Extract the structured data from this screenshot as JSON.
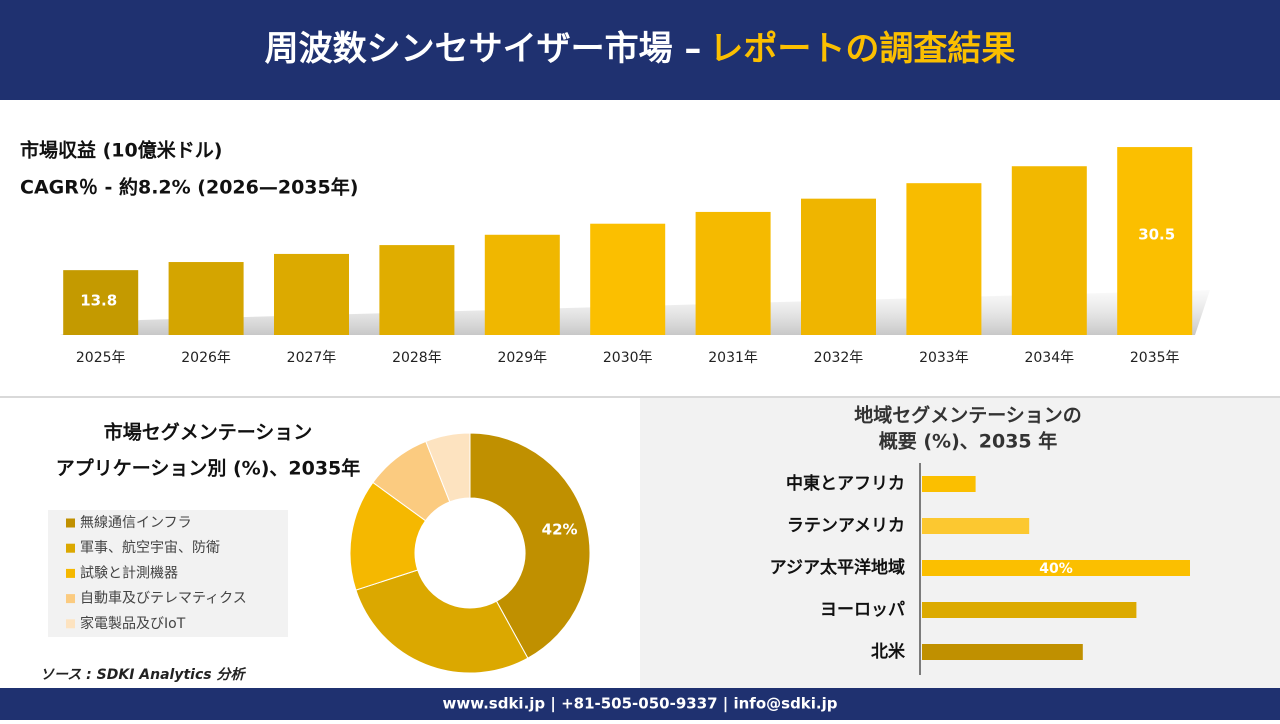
{
  "header": {
    "title": "周波数シンセサイザー市場 –",
    "title_highlight": "レポートの調査結果"
  },
  "chart_data": [
    {
      "type": "bar",
      "title": "市場収益 (10億米ドル)",
      "subtitle": "CAGR％ - 約8.2% (2026—2035年)",
      "categories": [
        "2025年",
        "2026年",
        "2027年",
        "2028年",
        "2029年",
        "2030年",
        "2031年",
        "2032年",
        "2033年",
        "2034年",
        "2035年"
      ],
      "values": [
        13.8,
        14.9,
        16.0,
        17.2,
        18.6,
        20.1,
        21.7,
        23.5,
        25.6,
        27.9,
        30.5
      ],
      "value_labels": [
        "13.8",
        null,
        null,
        null,
        null,
        null,
        null,
        null,
        null,
        null,
        "30.5"
      ],
      "colors": [
        "#c49a00",
        "#d4a500",
        "#dcaa00",
        "#e0ad00",
        "#f0b700",
        "#fbbf00",
        "#f5ba00",
        "#efb500",
        "#f8bc00",
        "#f2b800",
        "#fbbf00"
      ],
      "ylim": [
        5,
        31.5
      ]
    },
    {
      "type": "donut",
      "title": "市場セグメンテーション",
      "subtitle": "アプリケーション別 (%)、2035年",
      "categories": [
        "無線通信インフラ",
        "軍事、航空宇宙、防衛",
        "試験と計測機器",
        "自動車及びテレマティクス",
        "家電製品及びIoT"
      ],
      "values": [
        42,
        28,
        15,
        9,
        6
      ],
      "value_labels": [
        "42%",
        null,
        null,
        null,
        null
      ],
      "colors": [
        "#c09000",
        "#dba800",
        "#f5b800",
        "#fbcb80",
        "#fde3c0"
      ]
    },
    {
      "type": "hbar",
      "title": "地域セグメンテーションの",
      "subtitle": "概要 (%)、2035 年",
      "categories": [
        "中東とアフリカ",
        "ラテンアメリカ",
        "アジア太平洋地域",
        "ヨーロッパ",
        "北米"
      ],
      "values": [
        8,
        16,
        40,
        32,
        24
      ],
      "value_labels": [
        null,
        null,
        "40%",
        null,
        null
      ],
      "colors": [
        "#fbbf00",
        "#fcc830",
        "#fbbf00",
        "#dcaa00",
        "#c09000"
      ],
      "xlim": [
        0,
        40
      ]
    }
  ],
  "source": "ソース : SDKI Analytics 分析",
  "footer": "www.sdki.jp | +81-505-050-9337 | info@sdki.jp"
}
